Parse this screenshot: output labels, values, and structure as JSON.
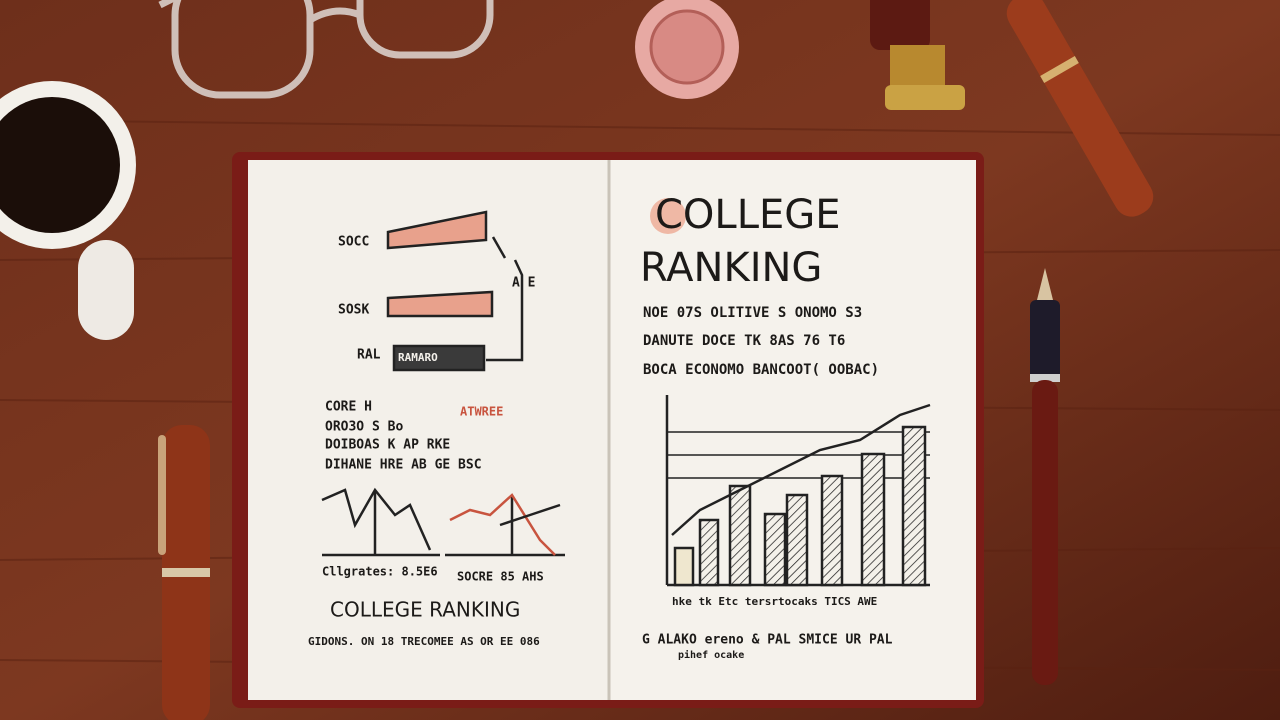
{
  "left_page": {
    "bar_labels": [
      "SOCC",
      "SOSK",
      "RAL"
    ],
    "bar_note": "RAMARO",
    "side_note": "A E",
    "notes": [
      "CORE H",
      "ORO3O S Bo",
      "DOIBOAS K AP RKE",
      "DIHANE HRE AB GE BSC"
    ],
    "red_note": "ATWREE",
    "graph_captions": [
      "Cllgrates: 8.5E6",
      "SOCRE 85 AHS"
    ],
    "title": "COLLEGE RANKING",
    "footer": "GIDONS. ON 18 TRECOMEE AS OR EE 086"
  },
  "right_page": {
    "title_line1": "COLLEGE",
    "title_line2": "RANKING",
    "lines": [
      "NOE 07S OLITIVE S ONOMO S3",
      "DANUTE DOCE TK 8AS 76 T6",
      "BOCA ECONOMO BANCOOT( OOBAC)"
    ],
    "chart_caption": "hke tk Etc tersrtocaks TICS AWE",
    "footer_line1": "G ALAKO ereno & PAL SMICE UR PAL",
    "footer_line2": "pihef ocake"
  }
}
